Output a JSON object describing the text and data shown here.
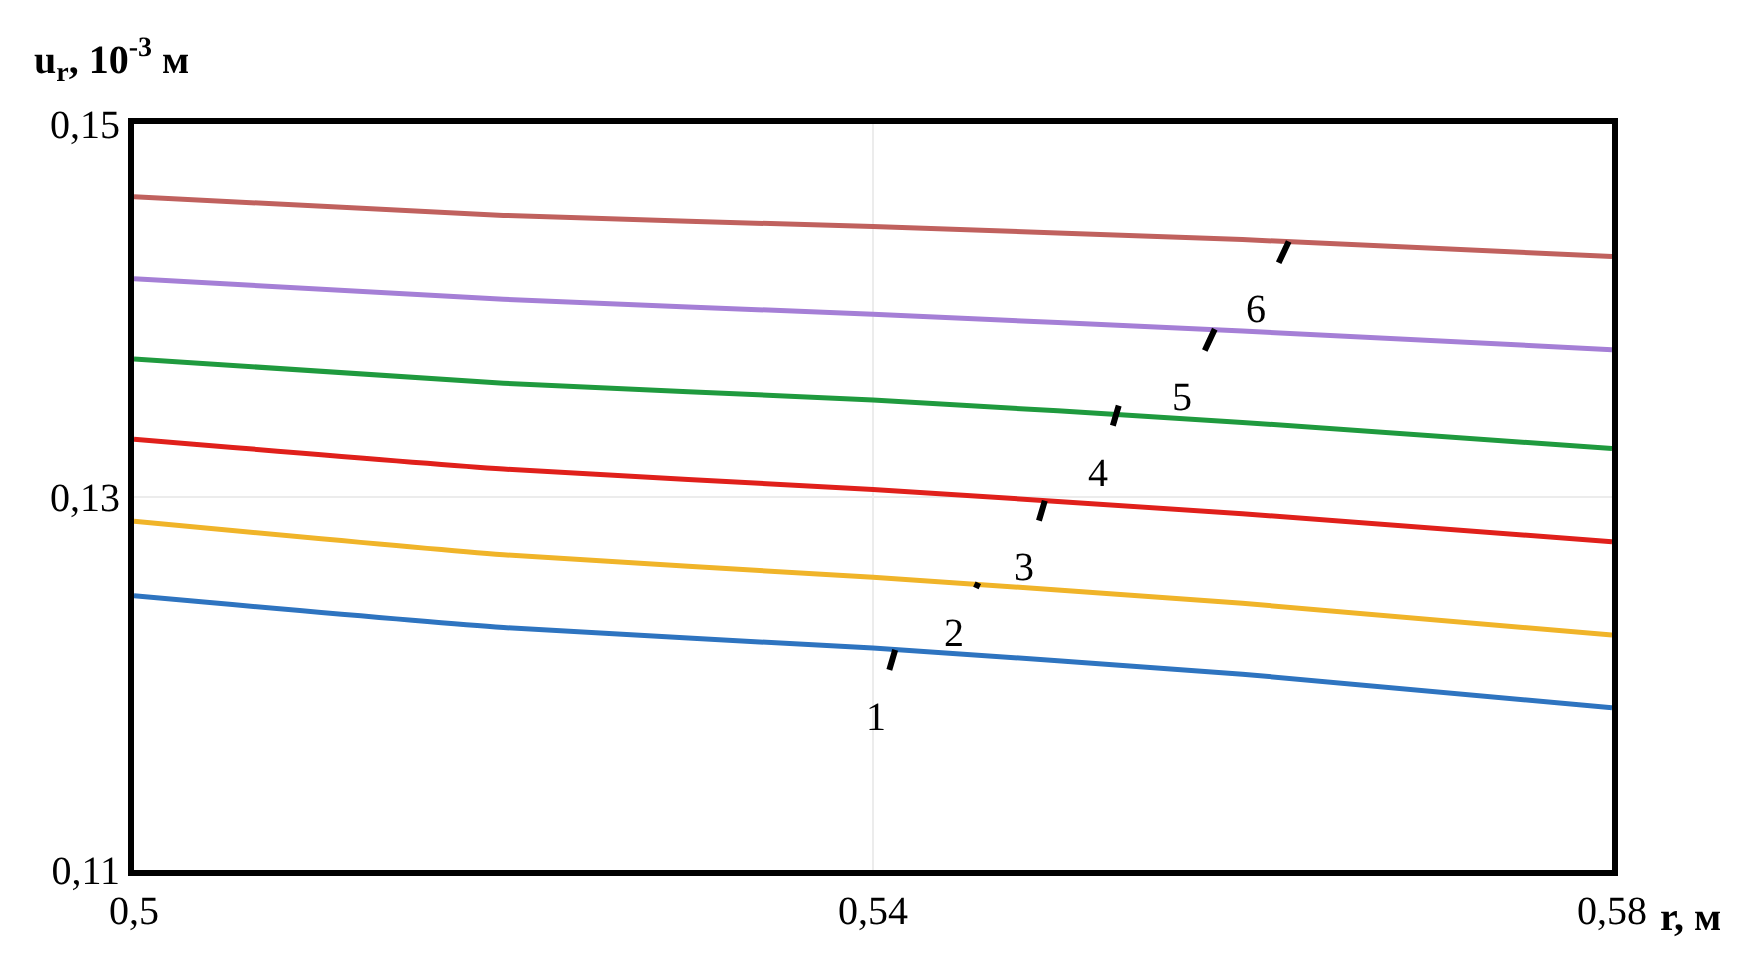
{
  "chart_data": {
    "type": "line",
    "xlabel": "r, м",
    "ylabel": "u$_{r}$, 10$^{-3}$ м",
    "x": [
      0.5,
      0.52,
      0.54,
      0.56,
      0.58
    ],
    "series": [
      {
        "color": "#2e74c0",
        "values": [
          0.1247,
          0.123,
          0.1219,
          0.1205,
          0.1187
        ]
      },
      {
        "color": "#f0b429",
        "values": [
          0.1287,
          0.1269,
          0.1257,
          0.1243,
          0.1226
        ]
      },
      {
        "color": "#e0201b",
        "values": [
          0.1331,
          0.1315,
          0.1304,
          0.1291,
          0.1276
        ]
      },
      {
        "color": "#1f9a3e",
        "values": [
          0.1374,
          0.1361,
          0.1352,
          0.134,
          0.1326
        ]
      },
      {
        "color": "#a57fd6",
        "values": [
          0.1417,
          0.1406,
          0.1398,
          0.1389,
          0.1379
        ]
      },
      {
        "color": "#c0615e",
        "values": [
          0.1461,
          0.1451,
          0.1445,
          0.1438,
          0.1429
        ]
      }
    ],
    "annotations": [
      {
        "text": "1",
        "x": 0.5412,
        "y": 0.1218
      },
      {
        "text": "2",
        "x": 0.5457,
        "y": 0.1254
      },
      {
        "text": "3",
        "x": 0.5493,
        "y": 0.1298
      },
      {
        "text": "4",
        "x": 0.5533,
        "y": 0.1349
      },
      {
        "text": "5",
        "x": 0.5585,
        "y": 0.139
      },
      {
        "text": "6",
        "x": 0.5625,
        "y": 0.1437
      }
    ],
    "xlim": [
      0.5,
      0.58
    ],
    "ylim": [
      0.11,
      0.15
    ],
    "xticks": [
      {
        "value": 0.5,
        "label": "0,5"
      },
      {
        "value": 0.54,
        "label": "0,54"
      },
      {
        "value": 0.58,
        "label": "0,58"
      }
    ],
    "yticks": [
      {
        "value": 0.11,
        "label": "0,11"
      },
      {
        "value": 0.13,
        "label": "0,13"
      },
      {
        "value": 0.15,
        "label": "0,15"
      }
    ],
    "grid": true,
    "line_style": "solid",
    "marker": "none"
  }
}
